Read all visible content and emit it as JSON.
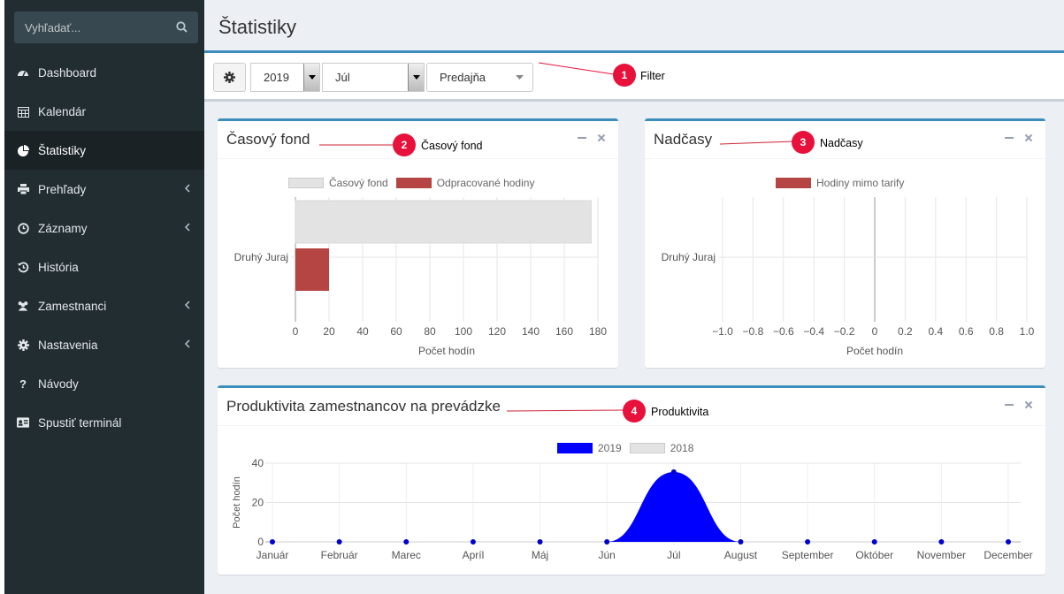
{
  "sidebar": {
    "search_placeholder": "Vyhľadať...",
    "items": [
      {
        "label": "Dashboard"
      },
      {
        "label": "Kalendár"
      },
      {
        "label": "Štatistiky"
      },
      {
        "label": "Prehľady"
      },
      {
        "label": "Záznamy"
      },
      {
        "label": "História"
      },
      {
        "label": "Zamestnanci"
      },
      {
        "label": "Nastavenia"
      },
      {
        "label": "Návody"
      },
      {
        "label": "Spustiť terminál"
      }
    ]
  },
  "header": {
    "title": "Štatistiky"
  },
  "filter": {
    "year": "2019",
    "month": "Júl",
    "store": "Predajňa"
  },
  "annotations": [
    {
      "num": "1",
      "label": "Filter"
    },
    {
      "num": "2",
      "label": "Časový fond"
    },
    {
      "num": "3",
      "label": "Nadčasy"
    },
    {
      "num": "4",
      "label": "Produktivita"
    }
  ],
  "colors": {
    "accent": "#3c8dbc",
    "sidebar": "#222d32",
    "badge": "#e8113c",
    "bar_gray": "#e3e3e3",
    "bar_red": "#b44543",
    "series_2019": "#0000ff"
  },
  "boxes": {
    "fond": {
      "title": "Časový fond"
    },
    "nadcasy": {
      "title": "Nadčasy"
    },
    "produktivita": {
      "title": "Produktivita zamestnancov na prevádzke"
    }
  },
  "chart_data": [
    {
      "type": "bar",
      "orientation": "horizontal",
      "categories": [
        "Druhý Juraj"
      ],
      "series": [
        {
          "name": "Časový fond",
          "values": [
            176
          ],
          "color": "#e3e3e3"
        },
        {
          "name": "Odpracované hodiny",
          "values": [
            20
          ],
          "color": "#b44543"
        }
      ],
      "xlabel": "Počet hodín",
      "xlim": [
        0,
        180
      ],
      "xticks": [
        "0",
        "20",
        "40",
        "60",
        "80",
        "100",
        "120",
        "140",
        "160",
        "180"
      ],
      "legend": "top"
    },
    {
      "type": "bar",
      "orientation": "horizontal",
      "categories": [
        "Druhý Juraj"
      ],
      "series": [
        {
          "name": "Hodiny mimo tarify",
          "values": [
            0
          ],
          "color": "#b44543"
        }
      ],
      "xlabel": "Počet hodín",
      "xlim": [
        -1.0,
        1.0
      ],
      "xticks": [
        "−1.0",
        "−0.8",
        "−0.6",
        "−0.4",
        "−0.2",
        "0",
        "0.2",
        "0.4",
        "0.6",
        "0.8",
        "1.0"
      ],
      "legend": "top"
    },
    {
      "type": "area",
      "categories": [
        "Január",
        "Február",
        "Marec",
        "Apríl",
        "Máj",
        "Jún",
        "Júl",
        "August",
        "September",
        "Október",
        "November",
        "December"
      ],
      "series": [
        {
          "name": "2019",
          "values": [
            0,
            0,
            0,
            0,
            0,
            0,
            35.5,
            0,
            0,
            0,
            0,
            0
          ],
          "color": "#0000ff"
        },
        {
          "name": "2018",
          "values": [
            0,
            0,
            0,
            0,
            0,
            0,
            0,
            0,
            0,
            0,
            0,
            0
          ],
          "color": "#e3e3e3"
        }
      ],
      "ylabel": "Počet hodín",
      "ylim": [
        0,
        40
      ],
      "yticks": [
        "0",
        "20",
        "40"
      ],
      "legend": "top"
    }
  ]
}
